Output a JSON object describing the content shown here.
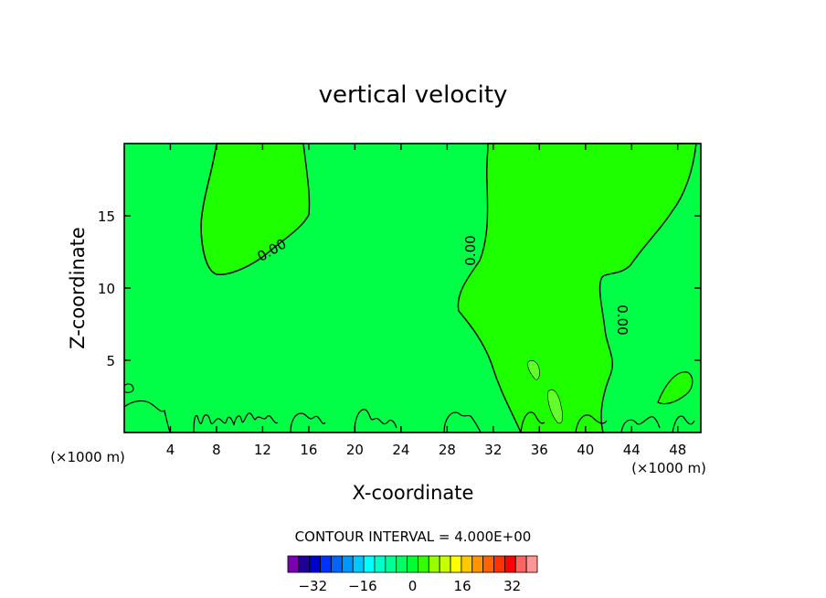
{
  "chart_data": {
    "type": "contour",
    "title": "vertical velocity",
    "xlabel": "X-coordinate",
    "ylabel": "Z-coordinate",
    "x_unit_left": "(×1000 m)",
    "x_unit_right": "(×1000 m)",
    "xlim": [
      0,
      50
    ],
    "ylim": [
      0,
      20
    ],
    "x_ticks": [
      4,
      8,
      12,
      16,
      20,
      24,
      28,
      32,
      36,
      40,
      44,
      48
    ],
    "y_ticks": [
      5,
      10,
      15
    ],
    "contour_labels": [
      "0.00",
      "0.00",
      "0.00"
    ],
    "contour_interval_text": "CONTOUR INTERVAL = 4.000E+00",
    "colorbar": {
      "tick_labels": [
        "−32",
        "−16",
        "0",
        "16",
        "32"
      ],
      "tick_values": [
        -32,
        -16,
        0,
        16,
        32
      ],
      "min": -40,
      "max": 40,
      "colors": [
        "#7a00b4",
        "#1e0096",
        "#0000c8",
        "#0032ff",
        "#0064ff",
        "#0096ff",
        "#00c8ff",
        "#00ffff",
        "#00ffc8",
        "#00ff96",
        "#00ff64",
        "#00ff32",
        "#32ff00",
        "#96ff00",
        "#c8ff00",
        "#ffff00",
        "#ffc800",
        "#ff9600",
        "#ff6400",
        "#ff3200",
        "#ff0000",
        "#ff6464",
        "#ff9696"
      ]
    },
    "fill_colors": {
      "background": "#00ff46",
      "zero_region": "#1eff00",
      "positive_region": "#64ff2a"
    }
  }
}
